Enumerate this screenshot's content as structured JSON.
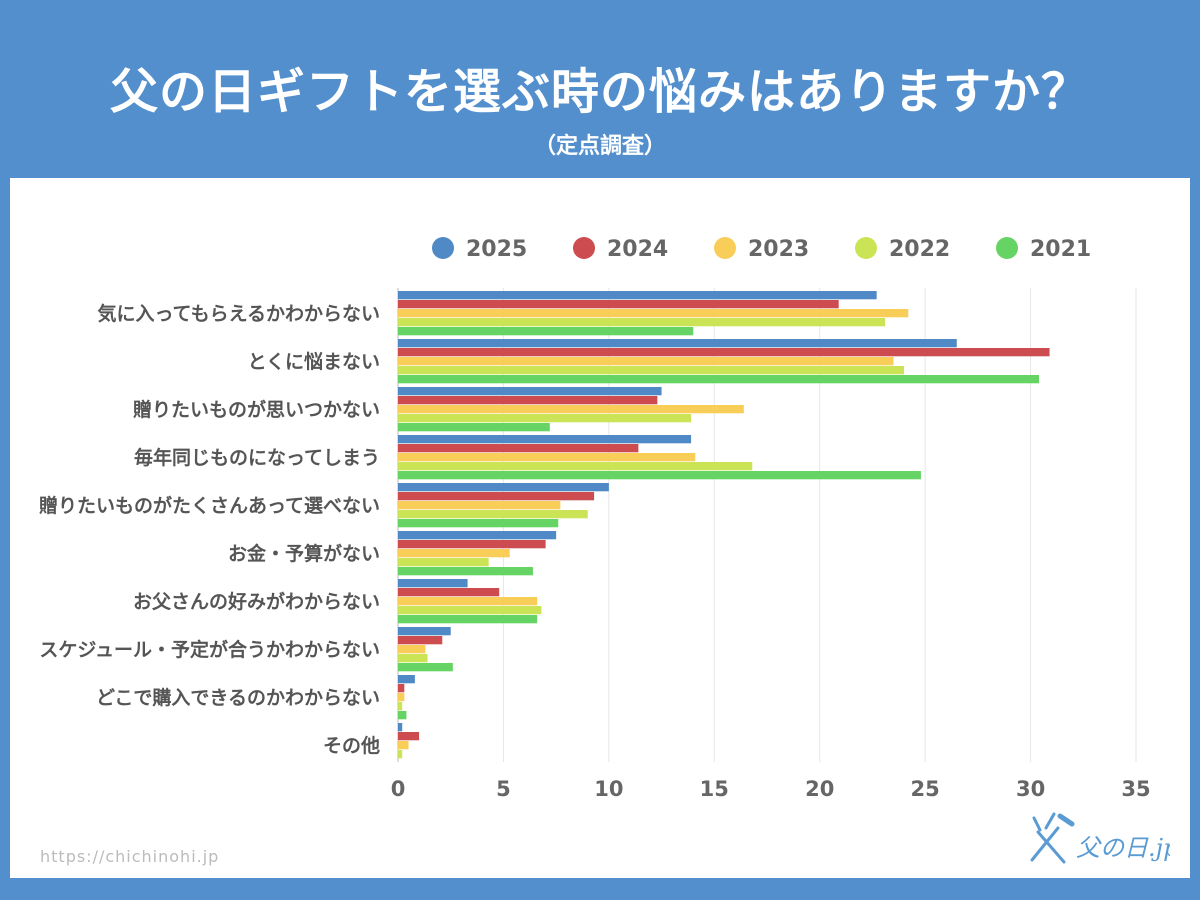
{
  "title": "父の日ギフトを選ぶ時の悩みはありますか？",
  "subtitle": "（定点調査）",
  "url": "https://chichinohi.jp",
  "logo_text": "父の日.jp",
  "chart_data": {
    "type": "bar",
    "orientation": "horizontal",
    "title": "父の日ギフトを選ぶ時の悩みはありますか？",
    "subtitle": "（定点調査）",
    "xlabel": "",
    "ylabel": "",
    "xlim": [
      0,
      35
    ],
    "ticks": [
      "0",
      "5",
      "10",
      "15",
      "20",
      "25",
      "30",
      "35"
    ],
    "tick_values": [
      0,
      5,
      10,
      15,
      20,
      25,
      30,
      35
    ],
    "grid": true,
    "legend_position": "top",
    "categories": [
      "気に入ってもらえるかわからない",
      "とくに悩まない",
      "贈りたいものが思いつかない",
      "毎年同じものになってしまう",
      "贈りたいものがたくさんあって選べない",
      "お金・予算がない",
      "お父さんの好みがわからない",
      "スケジュール・予定が合うかわからない",
      "どこで購入できるのかわからない",
      "その他"
    ],
    "series": [
      {
        "name": "2025",
        "color": "#4f89c6",
        "values": [
          22.7,
          26.5,
          12.5,
          13.9,
          10.0,
          7.5,
          3.3,
          2.5,
          0.8,
          0.2
        ]
      },
      {
        "name": "2024",
        "color": "#cc4c4f",
        "values": [
          20.9,
          30.9,
          12.3,
          11.4,
          9.3,
          7.0,
          4.8,
          2.1,
          0.3,
          1.0
        ]
      },
      {
        "name": "2023",
        "color": "#f8cd58",
        "values": [
          24.2,
          23.5,
          16.4,
          14.1,
          7.7,
          5.3,
          6.6,
          1.3,
          0.3,
          0.5
        ]
      },
      {
        "name": "2022",
        "color": "#cbe456",
        "values": [
          23.1,
          24.0,
          13.9,
          16.8,
          9.0,
          4.3,
          6.8,
          1.4,
          0.2,
          0.2
        ]
      },
      {
        "name": "2021",
        "color": "#66d464",
        "values": [
          14.0,
          30.4,
          7.2,
          24.8,
          7.6,
          6.4,
          6.6,
          2.6,
          0.4,
          0.0
        ]
      }
    ]
  }
}
